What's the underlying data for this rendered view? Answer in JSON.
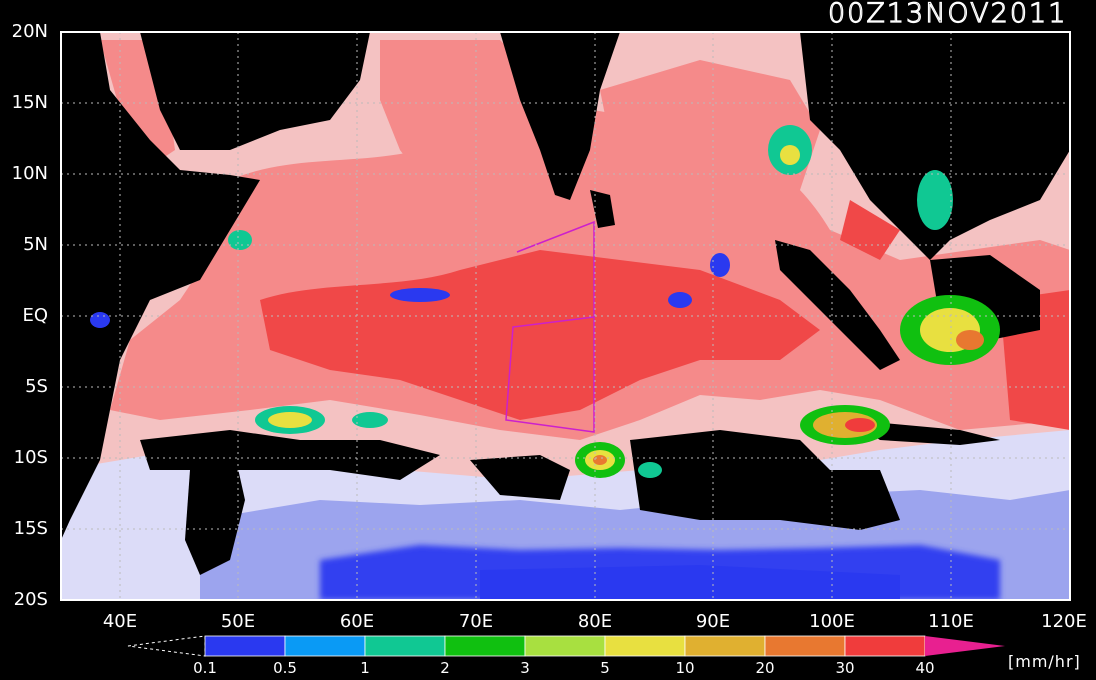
{
  "timestamp": "00Z13NOV2011",
  "map": {
    "lat_labels": [
      "20N",
      "15N",
      "10N",
      "5N",
      "EQ",
      "5S",
      "10S",
      "15S",
      "20S"
    ],
    "lon_labels": [
      "40E",
      "50E",
      "60E",
      "70E",
      "80E",
      "90E",
      "100E",
      "110E",
      "120E"
    ],
    "extent": {
      "lon_min": 35,
      "lon_max": 120,
      "lat_min": -20,
      "lat_max": 20
    }
  },
  "colorbar": {
    "labels": [
      "0.1",
      "0.5",
      "1",
      "2",
      "3",
      "5",
      "10",
      "20",
      "30",
      "40"
    ],
    "colors": [
      "#2a39f0",
      "#0a9af5",
      "#10c893",
      "#10c010",
      "#a8e040",
      "#e8e040",
      "#e0b030",
      "#e87830",
      "#f03c3c",
      "#e82090"
    ],
    "unit": "[mm/hr]"
  },
  "colors": {
    "land": "#000000",
    "ocean_light": "#f4c2c2",
    "ocean_mid": "#f58a8a",
    "ocean_high": "#f04848",
    "cool_light": "#dcdcf8",
    "cool_mid": "#9ca4ee",
    "cool_deep": "#3040f0",
    "box": "#cc20cc"
  }
}
